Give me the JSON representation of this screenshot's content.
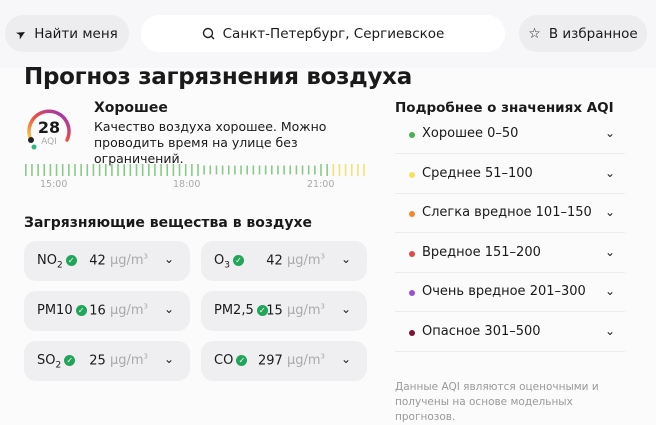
{
  "header": {
    "locate_label": "Найти меня",
    "search_value": "Санкт-Петербург, Сергиевское",
    "favorite_label": "В избранное"
  },
  "title": "Прогноз загрязнения воздуха",
  "current": {
    "aqi": "28",
    "aqi_label": "AQI",
    "status": "Хорошее",
    "description": "Качество воздуха хорошее. Можно проводить время на улице без ограничений."
  },
  "timeline": {
    "labels": [
      "15:00",
      "18:00",
      "21:00"
    ],
    "colors": {
      "good": "#8bc98a",
      "moderate": "#f0e17a"
    }
  },
  "pollutants_title": "Загрязняющие вещества в воздухе",
  "pollutants": [
    {
      "name": "NO",
      "sub": "2",
      "value": "42",
      "unit": "μg/m",
      "unit_sup": "3"
    },
    {
      "name": "O",
      "sub": "3",
      "value": "42",
      "unit": "μg/m",
      "unit_sup": "3"
    },
    {
      "name": "PM10",
      "sub": "",
      "value": "16",
      "unit": "μg/m",
      "unit_sup": "3"
    },
    {
      "name": "PM2,5",
      "sub": "",
      "value": "15",
      "unit": "μg/m",
      "unit_sup": "3"
    },
    {
      "name": "SO",
      "sub": "2",
      "value": "25",
      "unit": "μg/m",
      "unit_sup": "3"
    },
    {
      "name": "CO",
      "sub": "",
      "value": "297",
      "unit": "μg/m",
      "unit_sup": "3"
    }
  ],
  "aqi_info": {
    "title": "Подробнее о значениях AQI",
    "levels": [
      {
        "label": "Хорошее 0–50",
        "color": "#4caf50"
      },
      {
        "label": "Среднее 51–100",
        "color": "#f2e35a"
      },
      {
        "label": "Слегка вредное 101–150",
        "color": "#f08a2c"
      },
      {
        "label": "Вредное 151–200",
        "color": "#e0484a"
      },
      {
        "label": "Очень вредное 201–300",
        "color": "#9c4fd0"
      },
      {
        "label": "Опасное 301–500",
        "color": "#7a1230"
      }
    ],
    "note": "Данные AQI являются оценочными и получены на основе модельных прогнозов."
  }
}
